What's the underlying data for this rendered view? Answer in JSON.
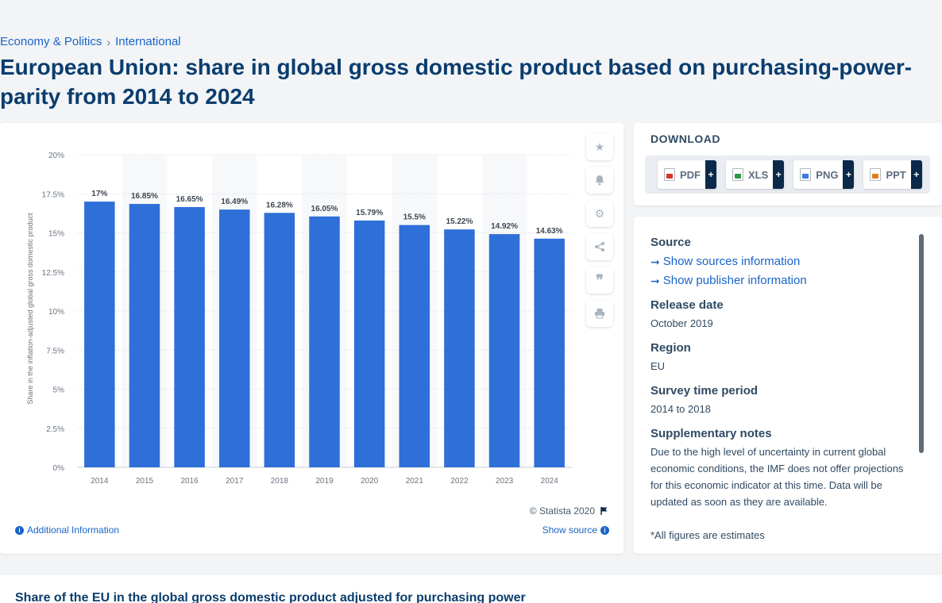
{
  "breadcrumb": {
    "items": [
      "Economy & Politics",
      "International"
    ],
    "separator": "›"
  },
  "title": "European Union: share in global gross domestic product based on purchasing-power-parity from 2014 to 2024",
  "chart_data": {
    "type": "bar",
    "categories": [
      "2014",
      "2015",
      "2016",
      "2017",
      "2018",
      "2019",
      "2020",
      "2021",
      "2022",
      "2023",
      "2024"
    ],
    "values": [
      17,
      16.85,
      16.65,
      16.49,
      16.28,
      16.05,
      15.79,
      15.5,
      15.22,
      14.92,
      14.63
    ],
    "value_labels": [
      "17%",
      "16.85%",
      "16.65%",
      "16.49%",
      "16.28%",
      "16.05%",
      "15.79%",
      "15.5%",
      "15.22%",
      "14.92%",
      "14.63%"
    ],
    "ylabel": "Share in the inflation-adjusted global gross domestic product",
    "xlabel": "",
    "ylim": [
      0,
      20
    ],
    "yticks": [
      "0%",
      "2.5%",
      "5%",
      "7.5%",
      "10%",
      "12.5%",
      "15%",
      "17.5%",
      "20%"
    ],
    "grid": true,
    "bar_color": "#2e6fd8"
  },
  "chart_footer": {
    "credit": "© Statista 2020",
    "additional_info": "Additional Information",
    "show_source": "Show source"
  },
  "tools": [
    "star-icon",
    "bell-icon",
    "gear-icon",
    "share-icon",
    "quote-icon",
    "print-icon"
  ],
  "download": {
    "title": "DOWNLOAD",
    "buttons": [
      {
        "label": "PDF",
        "color": "#d9322b"
      },
      {
        "label": "XLS",
        "color": "#2e9a4a"
      },
      {
        "label": "PNG",
        "color": "#3b7dd8"
      },
      {
        "label": "PPT",
        "color": "#e07a1e"
      }
    ],
    "plus": "+"
  },
  "meta": {
    "source_heading": "Source",
    "source_link": "Show sources information",
    "publisher_link": "Show publisher information",
    "release_heading": "Release date",
    "release_value": "October 2019",
    "region_heading": "Region",
    "region_value": "EU",
    "survey_heading": "Survey time period",
    "survey_value": "2014 to 2018",
    "notes_heading": "Supplementary notes",
    "notes_value": "Due to the high level of uncertainty in current global economic conditions, the IMF does not offer projections for this economic indicator at this time. Data will be updated as soon as they are available.",
    "notes_extra": "*All figures are estimates"
  },
  "bottom_title": "Share of the EU in the global gross domestic product adjusted for purchasing power"
}
